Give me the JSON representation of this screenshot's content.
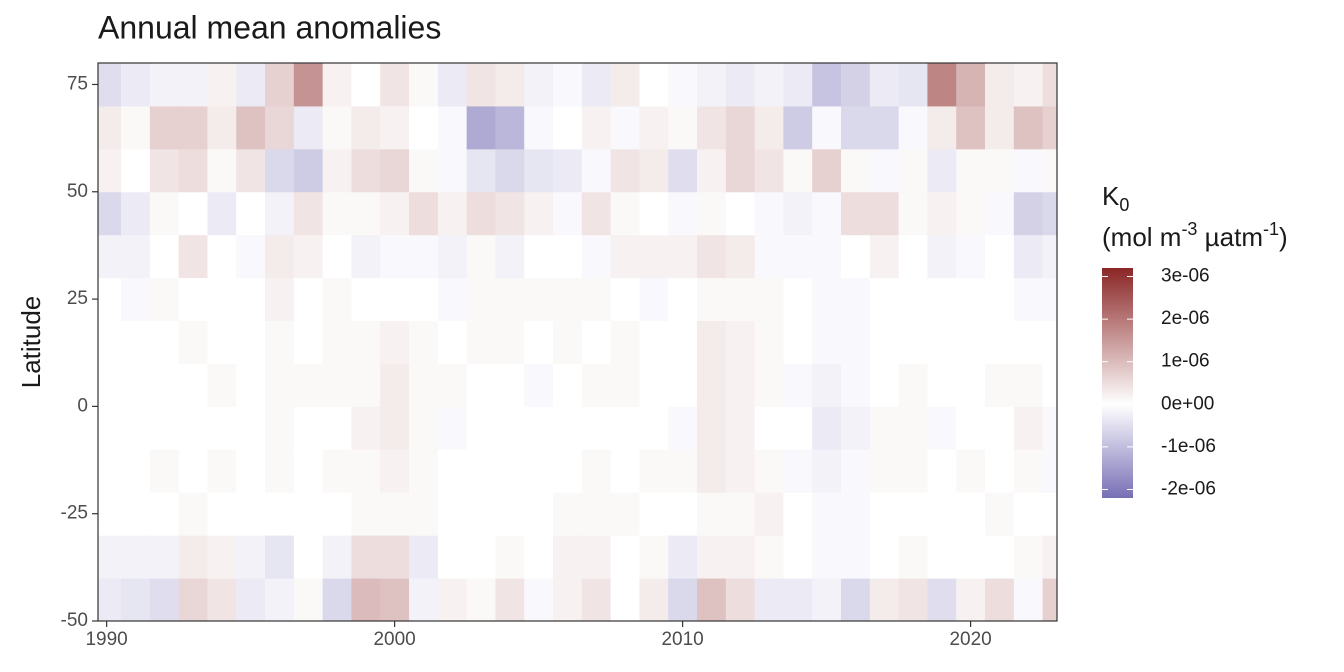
{
  "chart_data": {
    "type": "heatmap",
    "title": "Annual mean anomalies",
    "y_label": "Latitude",
    "legend_title": {
      "symbol": "K",
      "subscript": "0",
      "unit_parts": [
        "(mol m",
        "-3",
        " µatm",
        "-1",
        ")"
      ]
    },
    "x": [
      1990,
      1991,
      1992,
      1993,
      1994,
      1995,
      1996,
      1997,
      1998,
      1999,
      2000,
      2001,
      2002,
      2003,
      2004,
      2005,
      2006,
      2007,
      2008,
      2009,
      2010,
      2011,
      2012,
      2013,
      2014,
      2015,
      2016,
      2017,
      2018,
      2019,
      2020,
      2021,
      2022,
      2023
    ],
    "y": [
      -45,
      -35,
      -25,
      -15,
      -5,
      5,
      15,
      25,
      35,
      45,
      55,
      65,
      75
    ],
    "z": [
      [
        -3e-07,
        -2e-07,
        0,
        0,
        0,
        0,
        0,
        0,
        -2e-07,
        -6e-07,
        2e-07,
        3e-07,
        -5e-07
      ],
      [
        -4e-07,
        -2e-07,
        0,
        0,
        0,
        0,
        0,
        -1e-07,
        -2e-07,
        -3e-07,
        0,
        1e-07,
        -3e-07
      ],
      [
        -5e-07,
        -2e-07,
        0,
        1e-07,
        0,
        0,
        0,
        1e-07,
        0,
        1e-07,
        4e-07,
        7e-07,
        -2e-07
      ],
      [
        6e-07,
        3e-07,
        1e-07,
        0,
        0,
        0,
        1e-07,
        0,
        4e-07,
        0,
        5e-07,
        7e-07,
        -2e-07
      ],
      [
        4e-07,
        2e-07,
        0,
        1e-07,
        0,
        1e-07,
        0,
        0,
        0,
        -3e-07,
        1e-07,
        3e-07,
        2e-07
      ],
      [
        -3e-07,
        -2e-07,
        0,
        0,
        0,
        0,
        0,
        0,
        -1e-07,
        0,
        4e-07,
        9e-07,
        -3e-07
      ],
      [
        -2e-07,
        -4e-07,
        0,
        1e-07,
        1e-07,
        1e-07,
        1e-07,
        2e-07,
        3e-07,
        -2e-07,
        -6e-07,
        6e-07,
        7e-07
      ],
      [
        1e-07,
        0,
        0,
        0,
        0,
        1e-07,
        0,
        0,
        2e-07,
        4e-07,
        -8e-07,
        -3e-07,
        1.6e-06
      ],
      [
        -6e-07,
        -2e-07,
        0,
        1e-07,
        0,
        1e-07,
        1e-07,
        1e-07,
        0,
        1e-07,
        2e-07,
        1e-07,
        2e-07
      ],
      [
        1e-06,
        5e-07,
        1e-07,
        1e-07,
        2e-07,
        1e-07,
        1e-07,
        0,
        -2e-07,
        1e-07,
        5e-07,
        3e-07,
        0
      ],
      [
        9e-07,
        5e-07,
        1e-07,
        2e-07,
        3e-07,
        3e-07,
        2e-07,
        0,
        -1e-07,
        2e-07,
        6e-07,
        2e-07,
        4e-07
      ],
      [
        -2e-07,
        -3e-07,
        1e-07,
        1e-07,
        1e-07,
        1e-07,
        1e-07,
        0,
        -1e-07,
        5e-07,
        1e-07,
        0,
        1e-07
      ],
      [
        2e-07,
        0,
        0,
        0,
        -1e-07,
        1e-07,
        0,
        -1e-07,
        -2e-07,
        2e-07,
        -1e-07,
        -1e-07,
        -3e-07
      ],
      [
        1e-07,
        0,
        0,
        0,
        0,
        0,
        1e-07,
        1e-07,
        1e-07,
        5e-07,
        -4e-07,
        -1.3e-06,
        4e-07
      ],
      [
        4e-07,
        1e-07,
        0,
        0,
        0,
        0,
        1e-07,
        1e-07,
        -2e-07,
        4e-07,
        -6e-07,
        -1.1e-06,
        3e-07
      ],
      [
        -1e-07,
        0,
        0,
        0,
        0,
        -1e-07,
        0,
        1e-07,
        0,
        2e-07,
        -4e-07,
        -1e-07,
        -2e-07
      ],
      [
        2e-07,
        2e-07,
        1e-07,
        0,
        0,
        0,
        1e-07,
        1e-07,
        0,
        -1e-07,
        -3e-07,
        0,
        -1e-07
      ],
      [
        4e-07,
        2e-07,
        1e-07,
        1e-07,
        0,
        1e-07,
        0,
        1e-07,
        -1e-07,
        4e-07,
        -1e-07,
        2e-07,
        -3e-07
      ],
      [
        0,
        0,
        1e-07,
        0,
        0,
        1e-07,
        1e-07,
        0,
        2e-07,
        1e-07,
        4e-07,
        -1e-07,
        3e-07
      ],
      [
        3e-07,
        1e-07,
        0,
        1e-07,
        0,
        0,
        0,
        -1e-07,
        2e-07,
        0,
        3e-07,
        2e-07,
        0
      ],
      [
        -6e-07,
        -3e-07,
        0,
        1e-07,
        -1e-07,
        0,
        0,
        0,
        2e-07,
        -1e-07,
        -5e-07,
        1e-07,
        -1e-07
      ],
      [
        9e-07,
        2e-07,
        1e-07,
        3e-07,
        3e-07,
        3e-07,
        3e-07,
        1e-07,
        4e-07,
        1e-07,
        2e-07,
        4e-07,
        -2e-07
      ],
      [
        5e-07,
        2e-07,
        1e-07,
        2e-07,
        2e-07,
        2e-07,
        2e-07,
        1e-07,
        3e-07,
        0,
        6e-07,
        6e-07,
        -3e-07
      ],
      [
        -3e-07,
        1e-07,
        2e-07,
        1e-07,
        0,
        1e-07,
        1e-07,
        1e-07,
        -1e-07,
        -1e-07,
        4e-07,
        3e-07,
        -2e-07
      ],
      [
        -3e-07,
        0,
        0,
        -1e-07,
        0,
        -1e-07,
        0,
        0,
        -1e-07,
        -2e-07,
        1e-07,
        -8e-07,
        -3e-07
      ],
      [
        -2e-07,
        -1e-07,
        -1e-07,
        -2e-07,
        -3e-07,
        -2e-07,
        -1e-07,
        -1e-07,
        -1e-07,
        -1e-07,
        7e-07,
        -1e-07,
        -9e-07
      ],
      [
        -6e-07,
        -1e-07,
        -1e-07,
        -1e-07,
        -2e-07,
        -1e-07,
        -1e-07,
        -1e-07,
        0,
        5e-07,
        1e-07,
        -6e-07,
        -7e-07
      ],
      [
        3e-07,
        0,
        0,
        1e-07,
        1e-07,
        0,
        0,
        0,
        2e-07,
        5e-07,
        -1e-07,
        -6e-07,
        -3e-07
      ],
      [
        4e-07,
        1e-07,
        0,
        1e-07,
        1e-07,
        1e-07,
        0,
        0,
        0,
        1e-07,
        1e-07,
        -1e-07,
        -4e-07
      ],
      [
        -5e-07,
        0,
        0,
        0,
        -1e-07,
        0,
        0,
        0,
        -2e-07,
        2e-07,
        -3e-07,
        3e-07,
        1.8e-06
      ],
      [
        2e-07,
        0,
        0,
        1e-07,
        0,
        0,
        0,
        0,
        -1e-07,
        1e-07,
        1e-07,
        9e-07,
        1.1e-06
      ],
      [
        5e-07,
        0,
        1e-07,
        0,
        0,
        1e-07,
        0,
        0,
        0,
        -1e-07,
        1e-07,
        3e-07,
        3e-07
      ],
      [
        -1e-07,
        1e-07,
        0,
        1e-07,
        2e-07,
        1e-07,
        0,
        -1e-07,
        -3e-07,
        -7e-07,
        -1e-07,
        9e-07,
        2e-07
      ],
      [
        7e-07,
        2e-07,
        0,
        -1e-07,
        -1e-07,
        0,
        0,
        -1e-07,
        -2e-07,
        -6e-07,
        1e-07,
        7e-07,
        5e-07
      ]
    ],
    "xlim": [
      1989.7,
      2023.0
    ],
    "xticks": [
      1990,
      2000,
      2010,
      2020
    ],
    "ylim": [
      -50,
      80
    ],
    "yticks": [
      -50,
      -25,
      0,
      25,
      50,
      75
    ],
    "colorlim": [
      -2.2e-06,
      3.2e-06
    ],
    "colorticks": [
      {
        "value": 3e-06,
        "label": "3e-06"
      },
      {
        "value": 2e-06,
        "label": "2e-06"
      },
      {
        "value": 1e-06,
        "label": "1e-06"
      },
      {
        "value": 0,
        "label": "0e+00"
      },
      {
        "value": -1e-06,
        "label": "-1e-06"
      },
      {
        "value": -2e-06,
        "label": "-2e-06"
      }
    ],
    "colors": {
      "low": "#776fb5",
      "mid": "#ffffff",
      "high": "#8b2626"
    }
  }
}
